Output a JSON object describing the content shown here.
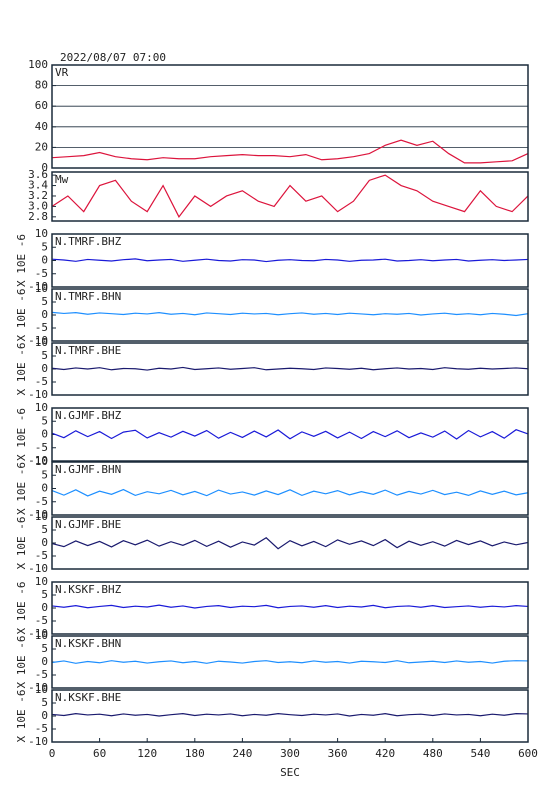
{
  "chart_data": [
    {
      "type": "line",
      "title": "2022/08/07 07:00",
      "xlim": [
        0,
        600
      ],
      "ylim": [
        0,
        100
      ],
      "yticks": [
        0,
        20,
        40,
        60,
        80,
        100
      ],
      "grid": true,
      "x": [
        0,
        20,
        40,
        60,
        80,
        100,
        120,
        140,
        160,
        180,
        200,
        220,
        240,
        260,
        280,
        300,
        320,
        340,
        360,
        380,
        400,
        420,
        440,
        460,
        480,
        500,
        520,
        540,
        560,
        580,
        600
      ],
      "series": [
        {
          "name": "VR",
          "color": "#dc143c",
          "values": [
            10,
            11,
            12,
            15,
            11,
            9,
            8,
            10,
            9,
            9,
            11,
            12,
            13,
            12,
            12,
            11,
            13,
            8,
            9,
            11,
            14,
            22,
            27,
            22,
            26,
            14,
            5,
            5,
            6,
            7,
            14
          ]
        }
      ]
    },
    {
      "type": "line",
      "xlim": [
        0,
        600
      ],
      "ylim": [
        2.72,
        3.66
      ],
      "yticks": [
        2.8,
        {
          "value": 3,
          "label": "3.0"
        },
        3.2,
        3.4,
        3.6
      ],
      "x": [
        0,
        20,
        40,
        60,
        80,
        100,
        120,
        140,
        160,
        180,
        200,
        220,
        240,
        260,
        280,
        300,
        320,
        340,
        360,
        380,
        400,
        420,
        440,
        460,
        480,
        500,
        520,
        540,
        560,
        580,
        600
      ],
      "series": [
        {
          "name": "Mw",
          "color": "#dc143c",
          "values": [
            3.0,
            3.2,
            2.9,
            3.4,
            3.5,
            3.1,
            2.9,
            3.4,
            2.8,
            3.2,
            3.0,
            3.2,
            3.3,
            3.1,
            3.0,
            3.4,
            3.1,
            3.2,
            2.9,
            3.1,
            3.5,
            3.6,
            3.4,
            3.3,
            3.1,
            3.0,
            2.9,
            3.3,
            3.0,
            2.9,
            3.2
          ]
        }
      ]
    },
    {
      "type": "line",
      "ylabel": "X 10E -6",
      "xlim": [
        0,
        600
      ],
      "ylim": [
        -10,
        10
      ],
      "yticks": [
        -10,
        -5,
        0,
        5,
        10
      ],
      "x": [
        0,
        15,
        30,
        45,
        60,
        75,
        90,
        105,
        120,
        135,
        150,
        165,
        180,
        195,
        210,
        225,
        240,
        255,
        270,
        285,
        300,
        315,
        330,
        345,
        360,
        375,
        390,
        405,
        420,
        435,
        450,
        465,
        480,
        495,
        510,
        525,
        540,
        555,
        570,
        585,
        600
      ],
      "series": [
        {
          "name": "N.TMRF.BHZ",
          "color": "#1a1ad8",
          "values": [
            0.5,
            0.2,
            -0.3,
            0.4,
            0.1,
            -0.2,
            0.3,
            0.6,
            -0.1,
            0.2,
            0.4,
            -0.3,
            0.1,
            0.5,
            0.0,
            -0.2,
            0.3,
            0.2,
            -0.4,
            0.1,
            0.3,
            0.0,
            -0.1,
            0.4,
            0.2,
            -0.3,
            0.1,
            0.2,
            0.5,
            -0.2,
            0.0,
            0.3,
            -0.1,
            0.2,
            0.4,
            -0.2,
            0.1,
            0.3,
            0.0,
            0.2,
            0.4
          ]
        }
      ]
    },
    {
      "type": "line",
      "ylabel": "X 10E -6",
      "xlim": [
        0,
        600
      ],
      "ylim": [
        -10,
        10
      ],
      "yticks": [
        -10,
        -5,
        0,
        5,
        10
      ],
      "x": [
        0,
        15,
        30,
        45,
        60,
        75,
        90,
        105,
        120,
        135,
        150,
        165,
        180,
        195,
        210,
        225,
        240,
        255,
        270,
        285,
        300,
        315,
        330,
        345,
        360,
        375,
        390,
        405,
        420,
        435,
        450,
        465,
        480,
        495,
        510,
        525,
        540,
        555,
        570,
        585,
        600
      ],
      "series": [
        {
          "name": "N.TMRF.BHN",
          "color": "#1e8fff",
          "values": [
            1.0,
            0.6,
            0.9,
            0.3,
            0.8,
            0.5,
            0.2,
            0.7,
            0.4,
            0.9,
            0.3,
            0.6,
            0.1,
            0.8,
            0.5,
            0.2,
            0.7,
            0.4,
            0.6,
            0.1,
            0.5,
            0.8,
            0.3,
            0.6,
            0.2,
            0.7,
            0.4,
            0.1,
            0.5,
            0.3,
            0.6,
            0.0,
            0.4,
            0.7,
            0.2,
            0.5,
            0.1,
            0.6,
            0.3,
            -0.2,
            0.5
          ]
        }
      ]
    },
    {
      "type": "line",
      "ylabel": "X 10E -6",
      "xlim": [
        0,
        600
      ],
      "ylim": [
        -10,
        10
      ],
      "yticks": [
        -10,
        -5,
        0,
        5,
        10
      ],
      "x": [
        0,
        15,
        30,
        45,
        60,
        75,
        90,
        105,
        120,
        135,
        150,
        165,
        180,
        195,
        210,
        225,
        240,
        255,
        270,
        285,
        300,
        315,
        330,
        345,
        360,
        375,
        390,
        405,
        420,
        435,
        450,
        465,
        480,
        495,
        510,
        525,
        540,
        555,
        570,
        585,
        600
      ],
      "series": [
        {
          "name": "N.TMRF.BHE",
          "color": "#1a1a6e",
          "values": [
            0.3,
            -0.2,
            0.4,
            0.0,
            0.5,
            -0.3,
            0.2,
            0.1,
            -0.4,
            0.3,
            0.0,
            0.6,
            -0.2,
            0.1,
            0.4,
            -0.1,
            0.2,
            0.5,
            -0.3,
            0.0,
            0.3,
            0.1,
            -0.2,
            0.4,
            0.2,
            -0.1,
            0.3,
            -0.3,
            0.1,
            0.4,
            0.0,
            0.2,
            -0.2,
            0.5,
            0.1,
            -0.1,
            0.3,
            0.0,
            0.2,
            0.4,
            0.1
          ]
        }
      ]
    },
    {
      "type": "line",
      "ylabel": "X 10E -6",
      "xlim": [
        0,
        600
      ],
      "ylim": [
        -10,
        10
      ],
      "yticks": [
        -10,
        -5,
        0,
        5,
        10
      ],
      "x": [
        0,
        15,
        30,
        45,
        60,
        75,
        90,
        105,
        120,
        135,
        150,
        165,
        180,
        195,
        210,
        225,
        240,
        255,
        270,
        285,
        300,
        315,
        330,
        345,
        360,
        375,
        390,
        405,
        420,
        435,
        450,
        465,
        480,
        495,
        510,
        525,
        540,
        555,
        570,
        585,
        600
      ],
      "series": [
        {
          "name": "N.GJMF.BHZ",
          "color": "#1a1ad8",
          "values": [
            0.5,
            -1.2,
            1.4,
            -0.8,
            1.1,
            -1.5,
            0.9,
            1.6,
            -1.3,
            0.7,
            -1.0,
            1.2,
            -0.6,
            1.5,
            -1.4,
            0.8,
            -1.1,
            1.3,
            -0.9,
            1.7,
            -1.6,
            1.0,
            -0.7,
            1.2,
            -1.3,
            0.9,
            -1.5,
            1.1,
            -0.8,
            1.4,
            -1.2,
            0.6,
            -1.0,
            1.3,
            -1.7,
            1.5,
            -0.9,
            1.1,
            -1.4,
            1.8,
            0.2
          ]
        }
      ]
    },
    {
      "type": "line",
      "ylabel": "X 10E -6",
      "xlim": [
        0,
        600
      ],
      "ylim": [
        -10,
        10
      ],
      "yticks": [
        -10,
        -5,
        0,
        5,
        10
      ],
      "x": [
        0,
        15,
        30,
        45,
        60,
        75,
        90,
        105,
        120,
        135,
        150,
        165,
        180,
        195,
        210,
        225,
        240,
        255,
        270,
        285,
        300,
        315,
        330,
        345,
        360,
        375,
        390,
        405,
        420,
        435,
        450,
        465,
        480,
        495,
        510,
        525,
        540,
        555,
        570,
        585,
        600
      ],
      "series": [
        {
          "name": "N.GJMF.BHN",
          "color": "#1e8fff",
          "values": [
            -0.8,
            -2.5,
            -0.5,
            -2.8,
            -1.0,
            -2.2,
            -0.4,
            -2.6,
            -1.2,
            -2.0,
            -0.7,
            -2.4,
            -1.1,
            -2.7,
            -0.6,
            -2.1,
            -1.3,
            -2.5,
            -0.9,
            -2.3,
            -0.5,
            -2.6,
            -1.0,
            -2.0,
            -0.8,
            -2.4,
            -1.2,
            -2.2,
            -0.6,
            -2.5,
            -1.1,
            -2.1,
            -0.7,
            -2.3,
            -1.4,
            -2.6,
            -0.9,
            -2.2,
            -1.0,
            -2.4,
            -1.6
          ]
        }
      ]
    },
    {
      "type": "line",
      "ylabel": "X 10E -6",
      "xlim": [
        0,
        600
      ],
      "ylim": [
        -10,
        10
      ],
      "yticks": [
        -10,
        -5,
        0,
        5,
        10
      ],
      "x": [
        0,
        15,
        30,
        45,
        60,
        75,
        90,
        105,
        120,
        135,
        150,
        165,
        180,
        195,
        210,
        225,
        240,
        255,
        270,
        285,
        300,
        315,
        330,
        345,
        360,
        375,
        390,
        405,
        420,
        435,
        450,
        465,
        480,
        495,
        510,
        525,
        540,
        555,
        570,
        585,
        600
      ],
      "series": [
        {
          "name": "N.GJMF.BHE",
          "color": "#1a1a6e",
          "values": [
            -0.2,
            -1.4,
            0.8,
            -1.0,
            0.6,
            -1.5,
            0.9,
            -0.7,
            1.1,
            -1.2,
            0.5,
            -0.9,
            1.0,
            -1.3,
            0.7,
            -1.6,
            0.4,
            -0.8,
            2.0,
            -2.2,
            0.9,
            -1.1,
            0.6,
            -1.4,
            1.2,
            -0.5,
            0.8,
            -1.0,
            1.3,
            -1.8,
            0.7,
            -0.9,
            0.5,
            -1.2,
            1.0,
            -0.6,
            0.8,
            -1.1,
            0.4,
            -0.7,
            0.2
          ]
        }
      ]
    },
    {
      "type": "line",
      "ylabel": "X 10E -6",
      "xlim": [
        0,
        600
      ],
      "ylim": [
        -10,
        10
      ],
      "yticks": [
        -10,
        -5,
        0,
        5,
        10
      ],
      "x": [
        0,
        15,
        30,
        45,
        60,
        75,
        90,
        105,
        120,
        135,
        150,
        165,
        180,
        195,
        210,
        225,
        240,
        255,
        270,
        285,
        300,
        315,
        330,
        345,
        360,
        375,
        390,
        405,
        420,
        435,
        450,
        465,
        480,
        495,
        510,
        525,
        540,
        555,
        570,
        585,
        600
      ],
      "series": [
        {
          "name": "N.KSKF.BHZ",
          "color": "#1a1ad8",
          "values": [
            0.8,
            0.3,
            0.9,
            0.1,
            0.6,
            1.0,
            0.2,
            0.7,
            0.4,
            1.1,
            0.3,
            0.8,
            0.0,
            0.6,
            0.9,
            0.2,
            0.7,
            0.5,
            1.0,
            0.1,
            0.6,
            0.8,
            0.3,
            0.9,
            0.2,
            0.7,
            0.4,
            1.0,
            0.1,
            0.6,
            0.8,
            0.3,
            0.9,
            0.2,
            0.5,
            0.8,
            0.3,
            0.7,
            0.4,
            0.9,
            0.6
          ]
        }
      ]
    },
    {
      "type": "line",
      "ylabel": "X 10E -6",
      "xlim": [
        0,
        600
      ],
      "ylim": [
        -10,
        10
      ],
      "yticks": [
        -10,
        -5,
        0,
        5,
        10
      ],
      "x": [
        0,
        15,
        30,
        45,
        60,
        75,
        90,
        105,
        120,
        135,
        150,
        165,
        180,
        195,
        210,
        225,
        240,
        255,
        270,
        285,
        300,
        315,
        330,
        345,
        360,
        375,
        390,
        405,
        420,
        435,
        450,
        465,
        480,
        495,
        510,
        525,
        540,
        555,
        570,
        585,
        600
      ],
      "series": [
        {
          "name": "N.KSKF.BHN",
          "color": "#1e8fff",
          "values": [
            -0.2,
            0.4,
            -0.5,
            0.2,
            -0.3,
            0.5,
            -0.1,
            0.3,
            -0.4,
            0.1,
            0.4,
            -0.3,
            0.2,
            -0.5,
            0.3,
            0.0,
            -0.4,
            0.2,
            0.5,
            -0.2,
            0.1,
            -0.3,
            0.4,
            -0.1,
            0.2,
            -0.4,
            0.3,
            0.1,
            -0.2,
            0.5,
            -0.3,
            0.0,
            0.3,
            -0.2,
            0.4,
            -0.1,
            0.2,
            -0.4,
            0.3,
            0.5,
            0.4
          ]
        }
      ]
    },
    {
      "type": "line",
      "ylabel": "X 10E -6",
      "xlabel": "SEC",
      "xlim": [
        0,
        600
      ],
      "xticks": [
        0,
        60,
        120,
        180,
        240,
        300,
        360,
        420,
        480,
        540,
        600
      ],
      "ylim": [
        -10,
        10
      ],
      "yticks": [
        -10,
        -5,
        0,
        5,
        10
      ],
      "x": [
        0,
        15,
        30,
        45,
        60,
        75,
        90,
        105,
        120,
        135,
        150,
        165,
        180,
        195,
        210,
        225,
        240,
        255,
        270,
        285,
        300,
        315,
        330,
        345,
        360,
        375,
        390,
        405,
        420,
        435,
        450,
        465,
        480,
        495,
        510,
        525,
        540,
        555,
        570,
        585,
        600
      ],
      "series": [
        {
          "name": "N.KSKF.BHE",
          "color": "#1a1a6e",
          "values": [
            0.6,
            0.2,
            0.9,
            0.4,
            0.7,
            0.1,
            0.8,
            0.3,
            0.6,
            0.0,
            0.5,
            0.9,
            0.2,
            0.7,
            0.4,
            0.8,
            0.1,
            0.6,
            0.3,
            0.9,
            0.5,
            0.2,
            0.7,
            0.4,
            0.8,
            0.0,
            0.6,
            0.3,
            0.9,
            0.1,
            0.5,
            0.7,
            0.2,
            0.8,
            0.4,
            0.6,
            0.1,
            0.7,
            0.3,
            0.9,
            0.8
          ]
        }
      ]
    }
  ]
}
